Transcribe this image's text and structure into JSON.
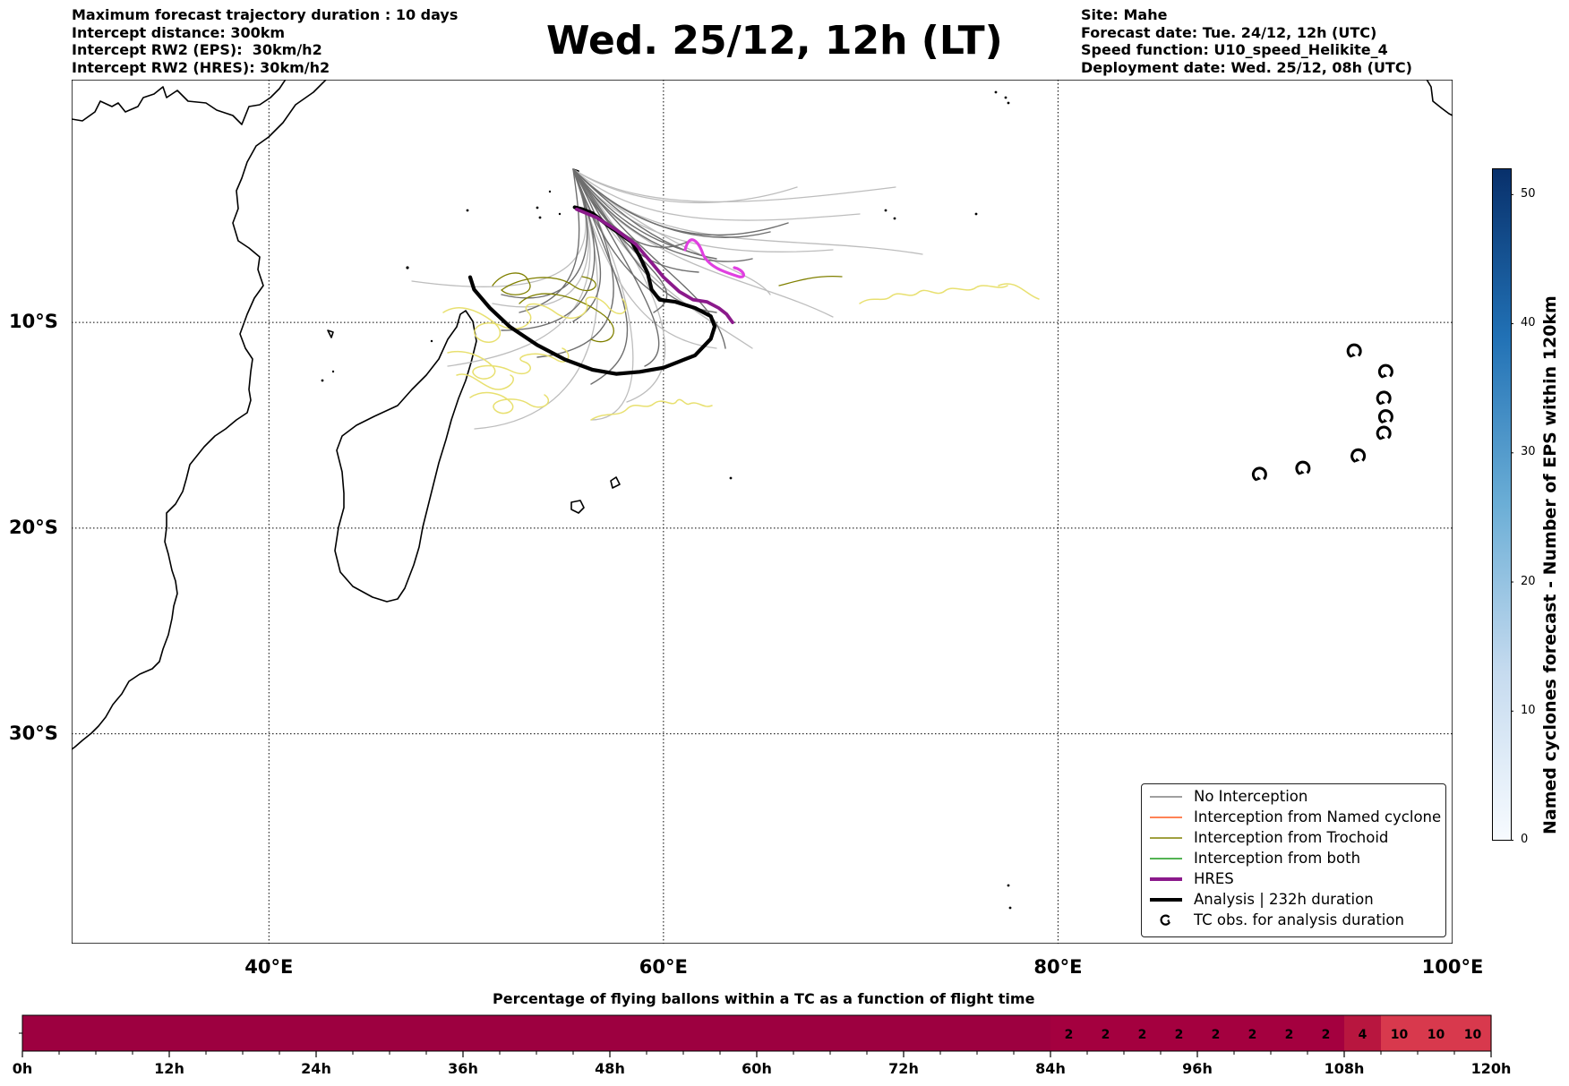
{
  "header": {
    "left_lines": [
      "Maximum forecast trajectory duration : 10 days",
      "Intercept distance: 300km",
      "Intercept RW2 (EPS):  30km/h2",
      "Intercept RW2 (HRES): 30km/h2"
    ],
    "title": "Wed. 25/12, 12h (LT)",
    "right_lines": [
      "Site: Mahe",
      "Forecast date: Tue. 24/12, 12h (UTC)",
      "Speed function: U10_speed_Helikite_4",
      "Deployment date: Wed. 25/12, 08h (UTC)"
    ]
  },
  "map": {
    "lon_range": [
      30,
      100
    ],
    "lat_range": [
      -40.2,
      1.8
    ],
    "lat_ticks": [
      {
        "value": -10,
        "label": "10°S"
      },
      {
        "value": -20,
        "label": "20°S"
      },
      {
        "value": -30,
        "label": "30°S"
      }
    ],
    "lon_ticks": [
      {
        "value": 40,
        "label": "40°E"
      },
      {
        "value": 60,
        "label": "60°E"
      },
      {
        "value": 80,
        "label": "80°E"
      },
      {
        "value": 100,
        "label": "100°E"
      }
    ],
    "grid": "dotted"
  },
  "colorbar": {
    "label": "Named cyclones forecast - Number of EPS within 120km",
    "range": [
      0,
      52
    ],
    "ticks": [
      "0",
      "10",
      "20",
      "30",
      "40",
      "50"
    ],
    "tick_values": [
      0,
      10,
      20,
      30,
      40,
      50
    ],
    "colors": [
      "#f7fbff",
      "#c6dbef",
      "#6baed6",
      "#2171b5",
      "#08306b"
    ]
  },
  "legend": {
    "placement": "lower-right",
    "items": [
      {
        "label": "No Interception",
        "color": "#808080",
        "style": "thin-line"
      },
      {
        "label": "Interception from Named cyclone",
        "color": "#ff5a1f",
        "style": "thin-line"
      },
      {
        "label": "Interception from Trochoid",
        "color": "#808000",
        "style": "thin-line"
      },
      {
        "label": "Interception from both",
        "color": "#1a9a1a",
        "style": "thin-line"
      },
      {
        "label": "HRES",
        "color": "#8b1a8b",
        "style": "thick-line"
      },
      {
        "label": "Analysis | 232h duration",
        "color": "#000000",
        "style": "thick-line"
      },
      {
        "label": "TC obs. for analysis duration",
        "color": "#000000",
        "style": "tc-symbol"
      }
    ]
  },
  "chart_data": [
    {
      "type": "line",
      "title": "Wed. 25/12, 12h (LT)",
      "xlabel": "",
      "ylabel": "",
      "xlim": [
        30,
        100
      ],
      "ylim": [
        -40.2,
        1.8
      ],
      "series": [
        {
          "name": "Analysis | 232h duration",
          "color": "#000000",
          "x": [
            50.2,
            50.4,
            51.2,
            52.2,
            53.6,
            55.0,
            56.4,
            57.6,
            58.8,
            60.0,
            60.8,
            61.6,
            62.4,
            62.6,
            62.4,
            61.6,
            60.6,
            59.8,
            59.4,
            59.2,
            58.8,
            58.4,
            57.8,
            57.2,
            56.8,
            56.4,
            55.9,
            55.5
          ],
          "y": [
            -7.8,
            -8.4,
            -9.3,
            -10.2,
            -11.1,
            -11.8,
            -12.3,
            -12.5,
            -12.4,
            -12.2,
            -11.9,
            -11.6,
            -10.8,
            -10.2,
            -9.7,
            -9.3,
            -9.0,
            -8.9,
            -8.4,
            -7.6,
            -6.8,
            -6.1,
            -5.7,
            -5.3,
            -5.0,
            -4.7,
            -4.5,
            -4.4
          ]
        },
        {
          "name": "HRES",
          "color": "#8b1a8b",
          "x": [
            55.6,
            56.6,
            57.6,
            58.6,
            59.4,
            60.0,
            60.8,
            61.5,
            62.2,
            62.8,
            63.2,
            63.5
          ],
          "y": [
            -4.5,
            -4.9,
            -5.5,
            -6.2,
            -7.1,
            -7.8,
            -8.5,
            -8.9,
            -9.0,
            -9.3,
            -9.6,
            -10.0
          ]
        }
      ],
      "tc_obs": [
        {
          "x": 90.2,
          "y": -17.4
        },
        {
          "x": 92.4,
          "y": -17.1
        },
        {
          "x": 95.2,
          "y": -16.5
        },
        {
          "x": 95.0,
          "y": -11.4
        },
        {
          "x": 96.6,
          "y": -12.4
        },
        {
          "x": 96.5,
          "y": -13.7
        },
        {
          "x": 96.6,
          "y": -14.6
        },
        {
          "x": 96.5,
          "y": -15.4
        }
      ]
    },
    {
      "type": "heatmap",
      "title": "Percentage of flying ballons within a TC as a function of flight time",
      "x_ticks": [
        "0h",
        "12h",
        "24h",
        "36h",
        "48h",
        "60h",
        "72h",
        "84h",
        "96h",
        "108h",
        "120h"
      ],
      "x_tick_values": [
        0,
        12,
        24,
        36,
        48,
        60,
        72,
        84,
        96,
        108,
        120
      ],
      "bin_hours": 3,
      "values": [
        0,
        0,
        0,
        0,
        0,
        0,
        0,
        0,
        0,
        0,
        0,
        0,
        0,
        0,
        0,
        0,
        0,
        0,
        0,
        0,
        0,
        0,
        0,
        0,
        0,
        0,
        0,
        0,
        2,
        2,
        2,
        2,
        2,
        2,
        2,
        2,
        4,
        10,
        10,
        10
      ],
      "labels": [
        "",
        "",
        "",
        "",
        "",
        "",
        "",
        "",
        "",
        "",
        "",
        "",
        "",
        "",
        "",
        "",
        "",
        "",
        "",
        "",
        "",
        "",
        "",
        "",
        "",
        "",
        "",
        "",
        "2",
        "2",
        "2",
        "2",
        "2",
        "2",
        "2",
        "2",
        "4",
        "10",
        "10",
        "10"
      ],
      "colors": {
        "0": "#9d0040",
        "2": "#a4003f",
        "4": "#b8163f",
        "10": "#d8394d"
      }
    }
  ]
}
